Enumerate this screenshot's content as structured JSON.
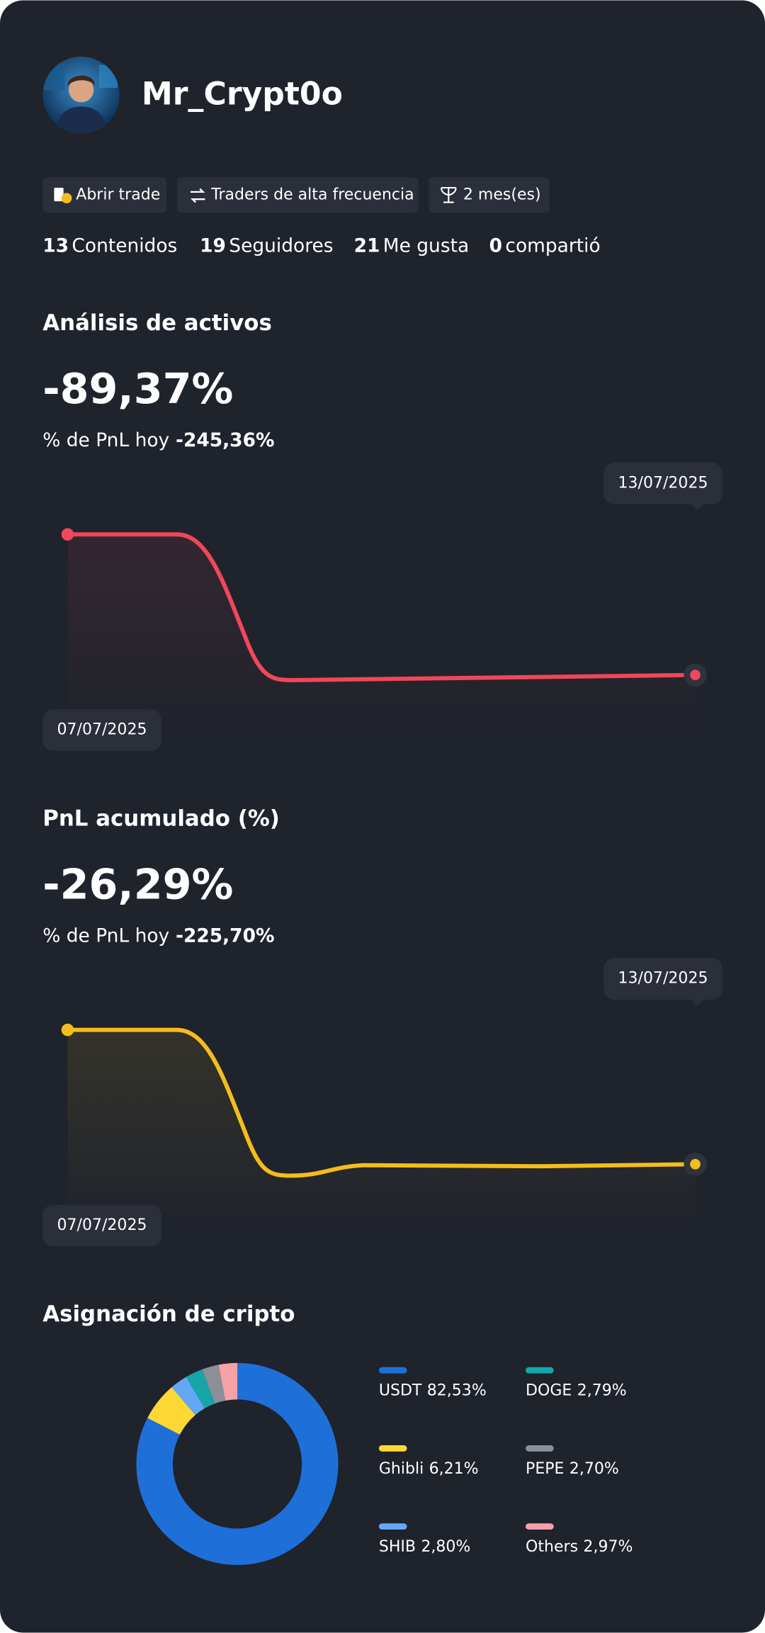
{
  "profile": {
    "username": "Mr_Crypt0o"
  },
  "tags": [
    "Abrir trade",
    "Traders de alta frecuencia",
    "2 mes(es)"
  ],
  "stats": [
    {
      "value": 13,
      "label": "Contenidos"
    },
    {
      "value": 19,
      "label": "Seguidores"
    },
    {
      "value": 21,
      "label": "Me gusta"
    },
    {
      "value": 0,
      "label": "compartió"
    }
  ],
  "sections": [
    {
      "title": "Análisis de activos",
      "value": "-89,37%",
      "subtitle_label": "% de PnL hoy",
      "subtitle_value": "-245,36%",
      "start_date": "07/07/2025",
      "end_date": "13/07/2025"
    },
    {
      "title": "PnL acumulado (%)",
      "value": "-26,29%",
      "subtitle_label": "% de PnL hoy",
      "subtitle_value": "-225,70%",
      "start_date": "07/07/2025",
      "end_date": "13/07/2025"
    }
  ],
  "chart_data": {
    "type": "pie",
    "title": "Asignación de cripto",
    "categories": [
      "USDT",
      "Ghibli",
      "SHIB",
      "DOGE",
      "PEPE",
      "Others"
    ],
    "values": [
      82.53,
      6.21,
      2.8,
      2.79,
      2.7,
      2.97
    ],
    "value_labels": [
      "82,53%",
      "6,21%",
      "2,80%",
      "2,79%",
      "2,70%",
      "2,97%"
    ],
    "colors": [
      "#1f6fd8",
      "#fdd835",
      "#64a8f5",
      "#16a6a6",
      "#8a8f98",
      "#f7a1a8"
    ]
  }
}
